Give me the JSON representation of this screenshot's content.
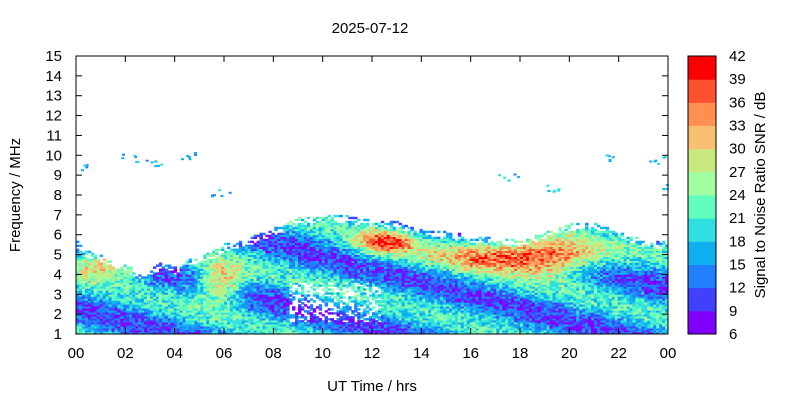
{
  "chart_data": {
    "type": "heatmap",
    "title": "2025-07-12",
    "xlabel": "UT Time / hrs",
    "ylabel": "Frequency / MHz",
    "colorbar_label": "Signal to Noise Ratio SNR / dB",
    "xlim": [
      0,
      24
    ],
    "ylim": [
      1,
      15
    ],
    "x_ticks": [
      "00",
      "02",
      "04",
      "06",
      "08",
      "10",
      "12",
      "14",
      "16",
      "18",
      "20",
      "22",
      "00"
    ],
    "y_ticks": [
      "1",
      "2",
      "3",
      "4",
      "5",
      "6",
      "7",
      "8",
      "9",
      "10",
      "11",
      "12",
      "13",
      "14",
      "15"
    ],
    "colorbar": {
      "range": [
        6,
        42
      ],
      "ticks": [
        "6",
        "9",
        "12",
        "15",
        "18",
        "21",
        "24",
        "27",
        "30",
        "33",
        "36",
        "39",
        "42"
      ],
      "colors": [
        "#8000ff",
        "#4040ff",
        "#2080ff",
        "#10b0f0",
        "#30e0e0",
        "#60ffc0",
        "#a0ffa0",
        "#c8e880",
        "#f8c070",
        "#ff9050",
        "#ff5030",
        "#ff0000"
      ]
    },
    "upper_envelope_mhz": [
      [
        0,
        5.6
      ],
      [
        0.5,
        5.1
      ],
      [
        1,
        4.9
      ],
      [
        1.5,
        4.6
      ],
      [
        2,
        4.4
      ],
      [
        2.5,
        4.1
      ],
      [
        3,
        4.3
      ],
      [
        3.5,
        4.6
      ],
      [
        4,
        4.3
      ],
      [
        4.5,
        4.7
      ],
      [
        5,
        4.9
      ],
      [
        5.5,
        5.1
      ],
      [
        6,
        5.5
      ],
      [
        7,
        5.8
      ],
      [
        8,
        6.3
      ],
      [
        9,
        6.8
      ],
      [
        10,
        6.9
      ],
      [
        11,
        6.9
      ],
      [
        12,
        6.7
      ],
      [
        13,
        6.6
      ],
      [
        14,
        6.3
      ],
      [
        15,
        6.1
      ],
      [
        16,
        5.9
      ],
      [
        17,
        5.8
      ],
      [
        18,
        5.7
      ],
      [
        19,
        6.1
      ],
      [
        20,
        6.5
      ],
      [
        21,
        6.6
      ],
      [
        22,
        6.1
      ],
      [
        23,
        5.7
      ],
      [
        24,
        5.6
      ]
    ],
    "sporadic_upper_traces_mhz": [
      [
        0.3,
        9.3
      ],
      [
        2.1,
        9.8
      ],
      [
        3.2,
        9.6
      ],
      [
        4.6,
        9.9
      ],
      [
        5.8,
        8.0
      ],
      [
        17.5,
        8.8
      ],
      [
        19.3,
        8.3
      ],
      [
        21.5,
        9.8
      ],
      [
        23.5,
        9.7
      ],
      [
        23.9,
        8.3
      ]
    ],
    "max_snr_db": 42,
    "max_snr_region": "strongest (red) returns at 2-6 MHz, around 06, 12-13 and 16-20 UT"
  }
}
